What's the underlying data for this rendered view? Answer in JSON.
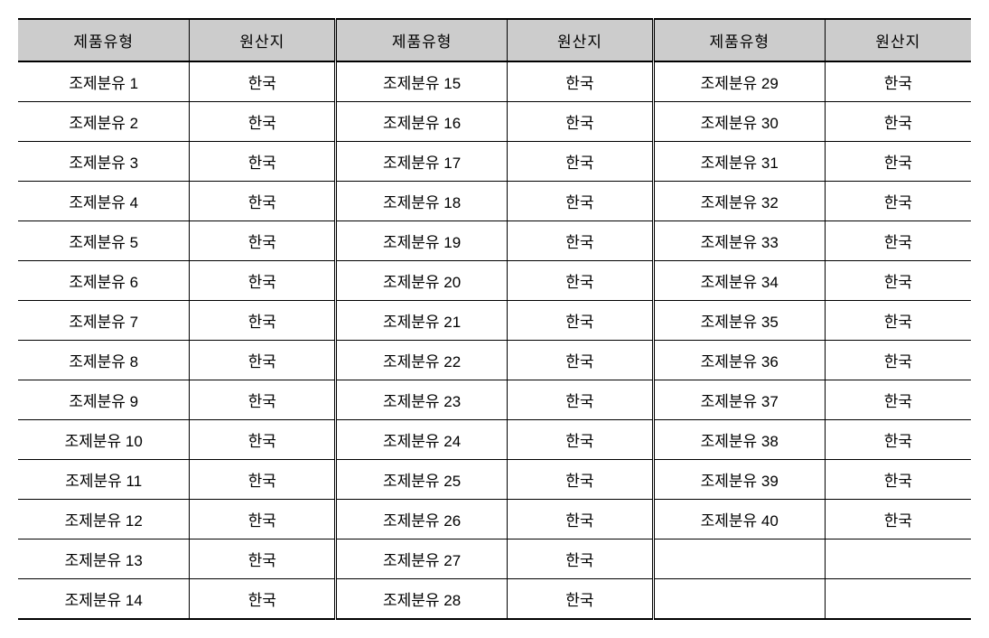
{
  "table": {
    "headers": {
      "type": "제품유형",
      "origin": "원산지"
    },
    "columns": [
      {
        "type": "제품유형",
        "origin": "원산지"
      },
      {
        "type": "제품유형",
        "origin": "원산지"
      },
      {
        "type": "제품유형",
        "origin": "원산지"
      }
    ],
    "rows": [
      [
        {
          "type": "조제분유 1",
          "origin": "한국"
        },
        {
          "type": "조제분유 15",
          "origin": "한국"
        },
        {
          "type": "조제분유 29",
          "origin": "한국"
        }
      ],
      [
        {
          "type": "조제분유 2",
          "origin": "한국"
        },
        {
          "type": "조제분유 16",
          "origin": "한국"
        },
        {
          "type": "조제분유 30",
          "origin": "한국"
        }
      ],
      [
        {
          "type": "조제분유 3",
          "origin": "한국"
        },
        {
          "type": "조제분유 17",
          "origin": "한국"
        },
        {
          "type": "조제분유 31",
          "origin": "한국"
        }
      ],
      [
        {
          "type": "조제분유 4",
          "origin": "한국"
        },
        {
          "type": "조제분유 18",
          "origin": "한국"
        },
        {
          "type": "조제분유 32",
          "origin": "한국"
        }
      ],
      [
        {
          "type": "조제분유 5",
          "origin": "한국"
        },
        {
          "type": "조제분유 19",
          "origin": "한국"
        },
        {
          "type": "조제분유 33",
          "origin": "한국"
        }
      ],
      [
        {
          "type": "조제분유 6",
          "origin": "한국"
        },
        {
          "type": "조제분유 20",
          "origin": "한국"
        },
        {
          "type": "조제분유 34",
          "origin": "한국"
        }
      ],
      [
        {
          "type": "조제분유 7",
          "origin": "한국"
        },
        {
          "type": "조제분유 21",
          "origin": "한국"
        },
        {
          "type": "조제분유 35",
          "origin": "한국"
        }
      ],
      [
        {
          "type": "조제분유 8",
          "origin": "한국"
        },
        {
          "type": "조제분유 22",
          "origin": "한국"
        },
        {
          "type": "조제분유 36",
          "origin": "한국"
        }
      ],
      [
        {
          "type": "조제분유 9",
          "origin": "한국"
        },
        {
          "type": "조제분유 23",
          "origin": "한국"
        },
        {
          "type": "조제분유 37",
          "origin": "한국"
        }
      ],
      [
        {
          "type": "조제분유 10",
          "origin": "한국"
        },
        {
          "type": "조제분유 24",
          "origin": "한국"
        },
        {
          "type": "조제분유 38",
          "origin": "한국"
        }
      ],
      [
        {
          "type": "조제분유 11",
          "origin": "한국"
        },
        {
          "type": "조제분유 25",
          "origin": "한국"
        },
        {
          "type": "조제분유 39",
          "origin": "한국"
        }
      ],
      [
        {
          "type": "조제분유 12",
          "origin": "한국"
        },
        {
          "type": "조제분유 26",
          "origin": "한국"
        },
        {
          "type": "조제분유 40",
          "origin": "한국"
        }
      ],
      [
        {
          "type": "조제분유 13",
          "origin": "한국"
        },
        {
          "type": "조제분유 27",
          "origin": "한국"
        },
        {
          "type": "",
          "origin": ""
        }
      ],
      [
        {
          "type": "조제분유 14",
          "origin": "한국"
        },
        {
          "type": "조제분유 28",
          "origin": "한국"
        },
        {
          "type": "",
          "origin": ""
        }
      ]
    ],
    "style": {
      "header_bg_color": "#cccccc",
      "border_color": "#000000",
      "background_color": "#ffffff",
      "text_color": "#000000",
      "font_size": 17,
      "row_count": 14,
      "column_groups": 3,
      "border_top_width": 2,
      "border_bottom_width": 2,
      "header_border_bottom_width": 2
    }
  }
}
